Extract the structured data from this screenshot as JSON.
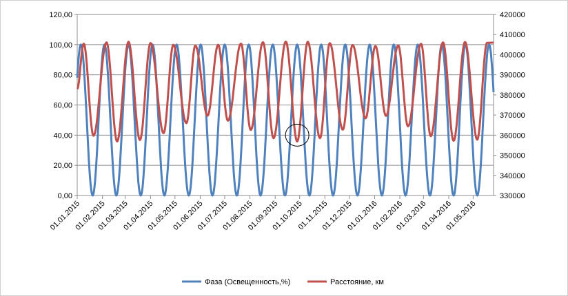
{
  "chart_data": {
    "type": "line",
    "title": "",
    "x_tick_labels": [
      "01.01.2015",
      "01.02.2015",
      "01.03.2015",
      "01.04.2015",
      "01.05.2015",
      "01.06.2015",
      "01.07.2015",
      "01.08.2015",
      "01.09.2015",
      "01.10.2015",
      "01.11.2015",
      "01.12.2015",
      "01.01.2016",
      "01.02.2016",
      "01.03.2016",
      "01.04.2016",
      "01.05.2016"
    ],
    "x_range": [
      "2015-01-01",
      "2016-05-26"
    ],
    "y_left": {
      "min": 0,
      "max": 120,
      "step": 20,
      "tick_labels": [
        "0,00",
        "20,00",
        "40,00",
        "60,00",
        "80,00",
        "100,00",
        "120,00"
      ]
    },
    "y_right": {
      "min": 330000,
      "max": 420000,
      "step": 10000,
      "tick_labels": [
        "330000",
        "340000",
        "350000",
        "360000",
        "370000",
        "380000",
        "390000",
        "400000",
        "410000",
        "420000"
      ]
    },
    "grid": "horizontal",
    "legend_position": "bottom",
    "series": [
      {
        "name": "Фаза (Освещенность,%)",
        "axis": "left",
        "color": "#4f81bd",
        "description": "Lunar illumination, 0–100 %",
        "new_moons": [
          "2015-01-20",
          "2015-02-18",
          "2015-03-20",
          "2015-04-18",
          "2015-05-18",
          "2015-06-16",
          "2015-07-16",
          "2015-08-14",
          "2015-09-13",
          "2015-10-13",
          "2015-11-11",
          "2015-12-11",
          "2016-01-10",
          "2016-02-08",
          "2016-03-09",
          "2016-04-07",
          "2016-05-06"
        ],
        "min": 0,
        "max": 100
      },
      {
        "name": "Расстояние, км",
        "axis": "right",
        "color": "#c0504d",
        "description": "Earth–Moon distance, km",
        "points": [
          [
            "2015-01-01",
            383000
          ],
          [
            "2015-01-09",
            405500
          ],
          [
            "2015-01-21",
            359700
          ],
          [
            "2015-02-06",
            406100
          ],
          [
            "2015-02-19",
            356900
          ],
          [
            "2015-03-05",
            406400
          ],
          [
            "2015-03-19",
            357600
          ],
          [
            "2015-04-01",
            405800
          ],
          [
            "2015-04-17",
            361000
          ],
          [
            "2015-04-29",
            404900
          ],
          [
            "2015-05-15",
            366000
          ],
          [
            "2015-05-26",
            404500
          ],
          [
            "2015-06-10",
            369700
          ],
          [
            "2015-06-23",
            404900
          ],
          [
            "2015-07-05",
            367200
          ],
          [
            "2015-07-21",
            405500
          ],
          [
            "2015-08-02",
            362600
          ],
          [
            "2015-08-17",
            406200
          ],
          [
            "2015-08-30",
            358500
          ],
          [
            "2015-09-14",
            406500
          ],
          [
            "2015-09-28",
            356900
          ],
          [
            "2015-10-11",
            406400
          ],
          [
            "2015-10-26",
            358500
          ],
          [
            "2015-11-07",
            405700
          ],
          [
            "2015-11-23",
            362700
          ],
          [
            "2015-12-05",
            404800
          ],
          [
            "2015-12-21",
            368400
          ],
          [
            "2016-01-02",
            404300
          ],
          [
            "2016-01-15",
            369600
          ],
          [
            "2016-01-30",
            404600
          ],
          [
            "2016-02-11",
            364400
          ],
          [
            "2016-02-27",
            405400
          ],
          [
            "2016-03-10",
            359500
          ],
          [
            "2016-03-25",
            406100
          ],
          [
            "2016-04-07",
            357200
          ],
          [
            "2016-04-21",
            406300
          ],
          [
            "2016-05-06",
            357800
          ],
          [
            "2016-05-18",
            405900
          ],
          [
            "2016-05-26",
            406000
          ]
        ]
      }
    ]
  },
  "annotation": {
    "shape": "circle",
    "date": "2015-09-28",
    "value_left": 40
  }
}
